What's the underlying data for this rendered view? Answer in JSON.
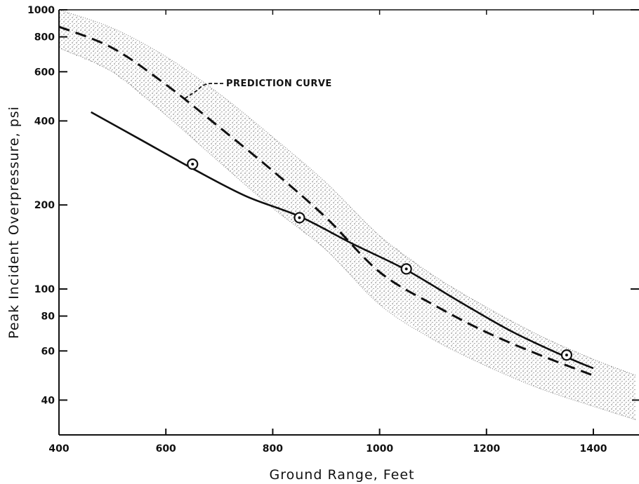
{
  "chart_data": {
    "type": "line",
    "title": "",
    "xlabel": "Ground Range, Feet",
    "ylabel": "Peak Incident Overpressure, psi",
    "xlim": [
      400,
      1480
    ],
    "ylim": [
      32,
      1000
    ],
    "y_scale": "log",
    "grid": false,
    "x_ticks": [
      400,
      600,
      800,
      1000,
      1200,
      1400
    ],
    "x_tick_labels": [
      "400",
      "600",
      "800",
      "1000",
      "1200",
      "1400"
    ],
    "y_ticks": [
      40,
      60,
      80,
      100,
      200,
      400,
      600,
      800,
      1000
    ],
    "y_tick_labels": [
      "40",
      "60",
      "80",
      "100",
      "200",
      "400",
      "600",
      "800",
      "1000"
    ],
    "annotations": [
      {
        "text": "PREDICTION CURVE",
        "points_to": {
          "x": 630,
          "y": 470
        }
      }
    ],
    "series": [
      {
        "style": "dashed",
        "points": [
          [
            400,
            870
          ],
          [
            500,
            730
          ],
          [
            600,
            540
          ],
          [
            700,
            380
          ],
          [
            800,
            265
          ],
          [
            900,
            180
          ],
          [
            1000,
            115
          ],
          [
            1100,
            88
          ],
          [
            1200,
            70
          ],
          [
            1300,
            58
          ],
          [
            1400,
            49
          ]
        ]
      },
      {
        "style": "band",
        "upper": [
          [
            400,
            1000
          ],
          [
            500,
            860
          ],
          [
            600,
            680
          ],
          [
            700,
            500
          ],
          [
            800,
            350
          ],
          [
            900,
            240
          ],
          [
            1000,
            155
          ],
          [
            1100,
            112
          ],
          [
            1200,
            86
          ],
          [
            1300,
            68
          ],
          [
            1400,
            56
          ],
          [
            1480,
            49
          ]
        ],
        "lower": [
          [
            400,
            730
          ],
          [
            500,
            600
          ],
          [
            600,
            420
          ],
          [
            700,
            285
          ],
          [
            800,
            195
          ],
          [
            900,
            138
          ],
          [
            1000,
            88
          ],
          [
            1100,
            66
          ],
          [
            1200,
            53
          ],
          [
            1300,
            44
          ],
          [
            1400,
            38
          ],
          [
            1480,
            34
          ]
        ]
      },
      {
        "style": "solid",
        "points": [
          [
            460,
            430
          ],
          [
            550,
            345
          ],
          [
            650,
            270
          ],
          [
            750,
            215
          ],
          [
            850,
            182
          ],
          [
            950,
            145
          ],
          [
            1050,
            117
          ],
          [
            1150,
            90
          ],
          [
            1250,
            70
          ],
          [
            1350,
            57
          ],
          [
            1400,
            52
          ]
        ]
      },
      {
        "style": "markers",
        "points": [
          [
            650,
            280
          ],
          [
            850,
            180
          ],
          [
            1050,
            118
          ],
          [
            1350,
            58
          ]
        ]
      }
    ]
  }
}
